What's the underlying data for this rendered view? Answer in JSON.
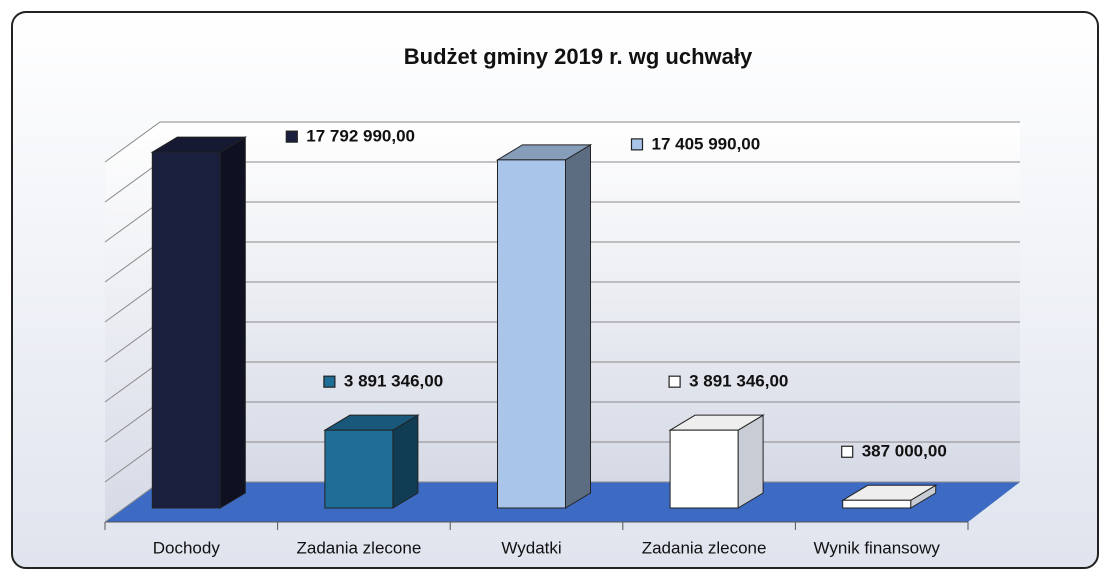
{
  "chart_data": {
    "type": "bar3d",
    "title": "Budżet gminy 2019 r. wg uchwały",
    "categories": [
      "Dochody",
      "Zadania zlecone",
      "Wydatki",
      "Zadania zlecone",
      "Wynik finansowy"
    ],
    "values": [
      17792990,
      3891346,
      17405990,
      3891346,
      387000
    ],
    "value_labels": [
      "17 792 990,00",
      "3 891 346,00",
      "17 405 990,00",
      "3 891 346,00",
      "387 000,00"
    ],
    "colors": [
      "#1b1f3e",
      "#1f6e98",
      "#a9c6ea",
      "#ffffff",
      "#ffffff"
    ],
    "ylim": [
      0,
      18000000
    ],
    "yticks": [
      0,
      2000000,
      4000000,
      6000000,
      8000000,
      10000000,
      12000000,
      14000000,
      16000000,
      18000000
    ],
    "grid": true
  }
}
